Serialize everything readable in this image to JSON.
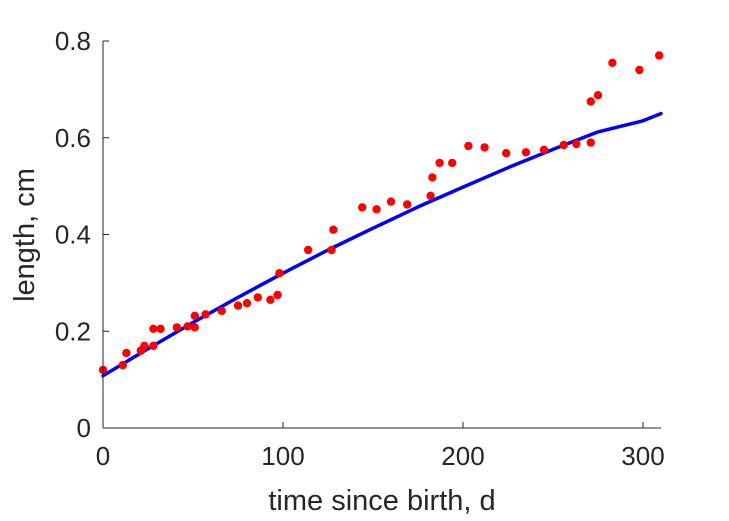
{
  "chart_data": {
    "type": "scatter",
    "xlabel": "time since birth, d",
    "ylabel": "length, cm",
    "xlim": [
      0,
      310
    ],
    "ylim": [
      0,
      0.8
    ],
    "xticks": [
      0,
      100,
      200,
      300
    ],
    "yticks": [
      0,
      0.2,
      0.4,
      0.6,
      0.8
    ],
    "xtick_labels": [
      "0",
      "100",
      "200",
      "300"
    ],
    "ytick_labels": [
      "0",
      "0.2",
      "0.4",
      "0.6",
      "0.8"
    ],
    "grid": false,
    "legend": "none",
    "series": [
      {
        "type": "scatter",
        "color": "#ff0000",
        "points": [
          [
            0,
            0.12
          ],
          [
            11,
            0.13
          ],
          [
            13,
            0.155
          ],
          [
            21,
            0.16
          ],
          [
            23,
            0.17
          ],
          [
            28,
            0.17
          ],
          [
            28,
            0.205
          ],
          [
            32,
            0.205
          ],
          [
            41,
            0.208
          ],
          [
            47,
            0.21
          ],
          [
            51,
            0.208
          ],
          [
            51,
            0.232
          ],
          [
            57,
            0.235
          ],
          [
            66,
            0.242
          ],
          [
            75,
            0.253
          ],
          [
            80,
            0.258
          ],
          [
            86,
            0.27
          ],
          [
            93,
            0.265
          ],
          [
            97,
            0.275
          ],
          [
            98,
            0.32
          ],
          [
            114,
            0.368
          ],
          [
            127,
            0.368
          ],
          [
            128,
            0.41
          ],
          [
            144,
            0.456
          ],
          [
            152,
            0.452
          ],
          [
            160,
            0.468
          ],
          [
            169,
            0.462
          ],
          [
            182,
            0.48
          ],
          [
            183,
            0.518
          ],
          [
            187,
            0.548
          ],
          [
            194,
            0.548
          ],
          [
            203,
            0.583
          ],
          [
            212,
            0.58
          ],
          [
            224,
            0.568
          ],
          [
            235,
            0.57
          ],
          [
            245,
            0.575
          ],
          [
            256,
            0.585
          ],
          [
            263,
            0.587
          ],
          [
            271,
            0.59
          ],
          [
            271,
            0.675
          ],
          [
            275,
            0.688
          ],
          [
            283,
            0.755
          ],
          [
            298,
            0.74
          ],
          [
            309,
            0.77
          ]
        ]
      },
      {
        "type": "line",
        "color": "#0000ff",
        "points": [
          [
            0,
            0.108
          ],
          [
            25,
            0.164
          ],
          [
            50,
            0.218
          ],
          [
            75,
            0.27
          ],
          [
            100,
            0.32
          ],
          [
            125,
            0.368
          ],
          [
            150,
            0.413
          ],
          [
            175,
            0.457
          ],
          [
            200,
            0.498
          ],
          [
            225,
            0.538
          ],
          [
            250,
            0.576
          ],
          [
            275,
            0.612
          ],
          [
            300,
            0.635
          ],
          [
            310,
            0.65
          ]
        ]
      }
    ]
  }
}
